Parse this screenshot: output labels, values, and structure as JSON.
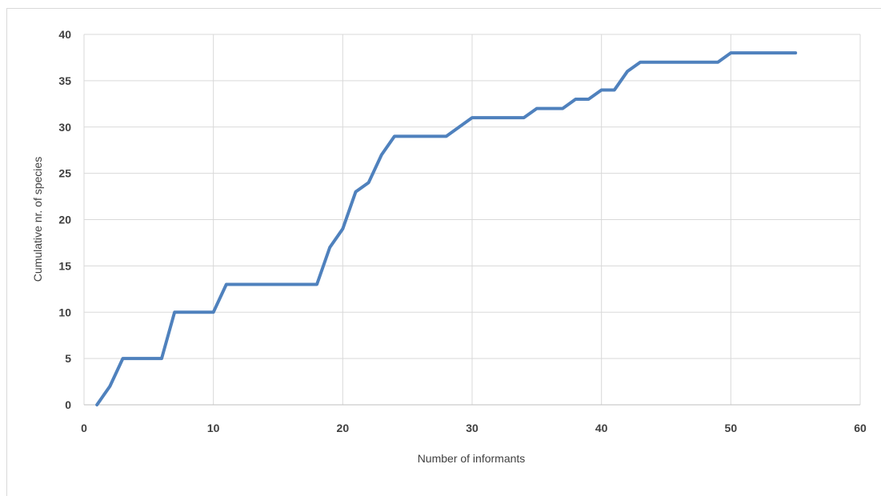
{
  "chart_data": {
    "type": "line",
    "title": "",
    "xlabel": "Number of informants",
    "ylabel": "Cumulative nr. of species",
    "xlim": [
      0,
      60
    ],
    "ylim": [
      0,
      40
    ],
    "x_ticks": [
      "0",
      "10",
      "20",
      "30",
      "40",
      "50",
      "60"
    ],
    "y_ticks": [
      "0",
      "5",
      "10",
      "15",
      "20",
      "25",
      "30",
      "35",
      "40"
    ],
    "grid": true,
    "legend": "none",
    "series": [
      {
        "color": "#4f81bd",
        "x": [
          1,
          2,
          3,
          4,
          5,
          6,
          7,
          8,
          9,
          10,
          11,
          12,
          13,
          14,
          15,
          16,
          17,
          18,
          19,
          20,
          21,
          22,
          23,
          24,
          25,
          26,
          27,
          28,
          29,
          30,
          31,
          32,
          33,
          34,
          35,
          36,
          37,
          38,
          39,
          40,
          41,
          42,
          43,
          44,
          45,
          46,
          47,
          48,
          49,
          50,
          51,
          52,
          53,
          54,
          55
        ],
        "y": [
          0,
          2,
          5,
          5,
          5,
          5,
          10,
          10,
          10,
          10,
          13,
          13,
          13,
          13,
          13,
          13,
          13,
          13,
          17,
          19,
          23,
          24,
          27,
          29,
          29,
          29,
          29,
          29,
          30,
          31,
          31,
          31,
          31,
          31,
          32,
          32,
          32,
          33,
          33,
          34,
          34,
          36,
          37,
          37,
          37,
          37,
          37,
          37,
          37,
          38,
          38,
          38,
          38,
          38,
          38
        ]
      }
    ]
  }
}
